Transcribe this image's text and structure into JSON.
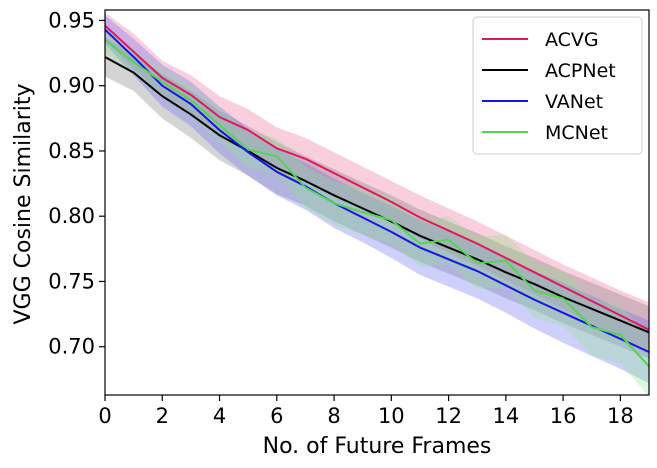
{
  "chart_data": {
    "type": "line",
    "xlabel": "No. of Future Frames",
    "ylabel": "VGG Cosine Similarity",
    "xlim": [
      0,
      19
    ],
    "ylim": [
      0.663,
      0.958
    ],
    "xticks": [
      0,
      2,
      4,
      6,
      8,
      10,
      12,
      14,
      16,
      18
    ],
    "xtick_labels": [
      "0",
      "2",
      "4",
      "6",
      "8",
      "10",
      "12",
      "14",
      "16",
      "18"
    ],
    "yticks": [
      0.7,
      0.75,
      0.8,
      0.85,
      0.9,
      0.95
    ],
    "ytick_labels": [
      "0.70",
      "0.75",
      "0.80",
      "0.85",
      "0.90",
      "0.95"
    ],
    "grid": false,
    "legend_position": "top-right",
    "x": [
      0,
      1,
      2,
      3,
      4,
      5,
      6,
      7,
      8,
      9,
      10,
      11,
      12,
      13,
      14,
      15,
      16,
      17,
      18,
      19
    ],
    "series": [
      {
        "name": "ACVG",
        "color": "#e0185f",
        "band_color": "#f06a96",
        "values": [
          0.946,
          0.926,
          0.906,
          0.893,
          0.876,
          0.866,
          0.852,
          0.844,
          0.833,
          0.822,
          0.811,
          0.799,
          0.789,
          0.779,
          0.768,
          0.757,
          0.746,
          0.735,
          0.724,
          0.713
        ],
        "upper": [
          0.956,
          0.94,
          0.919,
          0.908,
          0.892,
          0.882,
          0.868,
          0.86,
          0.849,
          0.838,
          0.827,
          0.816,
          0.806,
          0.796,
          0.785,
          0.774,
          0.763,
          0.753,
          0.743,
          0.734
        ],
        "lower": [
          0.935,
          0.913,
          0.893,
          0.879,
          0.861,
          0.851,
          0.836,
          0.828,
          0.817,
          0.806,
          0.795,
          0.783,
          0.772,
          0.762,
          0.751,
          0.74,
          0.729,
          0.717,
          0.706,
          0.694
        ]
      },
      {
        "name": "ACPNet",
        "color": "#000000",
        "band_color": "#7a7a7a",
        "values": [
          0.922,
          0.91,
          0.892,
          0.878,
          0.862,
          0.85,
          0.837,
          0.827,
          0.816,
          0.806,
          0.796,
          0.785,
          0.776,
          0.767,
          0.757,
          0.748,
          0.738,
          0.729,
          0.72,
          0.711
        ],
        "upper": [
          0.937,
          0.924,
          0.909,
          0.896,
          0.881,
          0.869,
          0.857,
          0.846,
          0.836,
          0.826,
          0.816,
          0.805,
          0.796,
          0.787,
          0.777,
          0.768,
          0.758,
          0.749,
          0.74,
          0.731
        ],
        "lower": [
          0.907,
          0.896,
          0.875,
          0.86,
          0.843,
          0.831,
          0.817,
          0.808,
          0.796,
          0.786,
          0.776,
          0.765,
          0.756,
          0.747,
          0.737,
          0.728,
          0.718,
          0.709,
          0.7,
          0.691
        ]
      },
      {
        "name": "VANet",
        "color": "#1515e8",
        "band_color": "#6b6bf2",
        "values": [
          0.943,
          0.922,
          0.9,
          0.886,
          0.866,
          0.849,
          0.834,
          0.823,
          0.81,
          0.799,
          0.788,
          0.776,
          0.767,
          0.758,
          0.747,
          0.736,
          0.726,
          0.716,
          0.706,
          0.696
        ],
        "upper": [
          0.954,
          0.936,
          0.916,
          0.903,
          0.884,
          0.867,
          0.852,
          0.841,
          0.829,
          0.818,
          0.808,
          0.797,
          0.788,
          0.779,
          0.768,
          0.758,
          0.749,
          0.739,
          0.729,
          0.72
        ],
        "lower": [
          0.932,
          0.908,
          0.884,
          0.869,
          0.848,
          0.831,
          0.816,
          0.805,
          0.791,
          0.78,
          0.768,
          0.755,
          0.746,
          0.737,
          0.726,
          0.714,
          0.703,
          0.693,
          0.683,
          0.672
        ]
      },
      {
        "name": "MCNet",
        "color": "#54d454",
        "band_color": "#8ee58e",
        "values": [
          0.935,
          0.918,
          0.903,
          0.889,
          0.87,
          0.851,
          0.846,
          0.822,
          0.81,
          0.803,
          0.797,
          0.779,
          0.782,
          0.764,
          0.766,
          0.743,
          0.737,
          0.715,
          0.709,
          0.685
        ],
        "upper": [
          0.944,
          0.928,
          0.914,
          0.901,
          0.883,
          0.865,
          0.86,
          0.838,
          0.827,
          0.82,
          0.815,
          0.797,
          0.8,
          0.784,
          0.786,
          0.764,
          0.758,
          0.737,
          0.731,
          0.708
        ],
        "lower": [
          0.926,
          0.908,
          0.892,
          0.877,
          0.857,
          0.837,
          0.832,
          0.806,
          0.793,
          0.786,
          0.779,
          0.761,
          0.764,
          0.744,
          0.746,
          0.722,
          0.716,
          0.693,
          0.687,
          0.662
        ]
      }
    ]
  }
}
